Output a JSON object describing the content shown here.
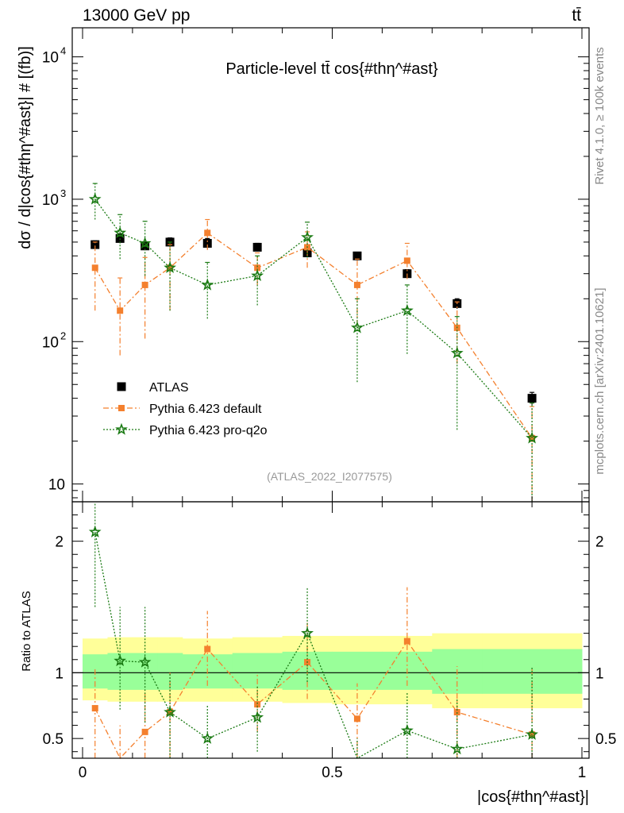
{
  "header": {
    "energy_label": "13000 GeV pp",
    "process_label": "tt̄"
  },
  "side": {
    "rivet_label": "Rivet 4.1.0, ≥ 100k events",
    "source_label": "mcplots.cern.ch [arXiv:2401.10621]"
  },
  "chart_data": {
    "type": "scatter",
    "title": "Particle-level tt̄ cos{#thη^#ast}",
    "analysis_id": "(ATLAS_2022_I2077575)",
    "xlabel": "|cos{#thη^#ast}|",
    "ylabel": "dσ / d|cos{#thη^#ast}| # [(fb)]",
    "ratio_ylabel": "Ratio to ATLAS",
    "xlim": [
      0,
      1
    ],
    "ylim": [
      7.5,
      16000
    ],
    "yscale": "log",
    "ratio_ylim": [
      0.35,
      2.3
    ],
    "x_ticks": [
      {
        "value": 0,
        "label": "0"
      },
      {
        "value": 0.5,
        "label": "0.5"
      },
      {
        "value": 1,
        "label": "1"
      }
    ],
    "y_ticks": [
      {
        "value": 10,
        "label": "10"
      },
      {
        "value": 100,
        "label": "10",
        "exp": "2"
      },
      {
        "value": 1000,
        "label": "10",
        "exp": "3"
      },
      {
        "value": 10000,
        "label": "10",
        "exp": "4"
      }
    ],
    "ratio_ticks": [
      {
        "value": 0.5,
        "label": "0.5"
      },
      {
        "value": 1,
        "label": "1"
      },
      {
        "value": 2,
        "label": "2"
      }
    ],
    "bin_edges": [
      0,
      0.05,
      0.1,
      0.15,
      0.2,
      0.3,
      0.4,
      0.5,
      0.6,
      0.7,
      0.8,
      1.0
    ],
    "series": [
      {
        "name": "ATLAS",
        "color": "#000000",
        "marker": "square",
        "x": [
          0.025,
          0.075,
          0.125,
          0.175,
          0.25,
          0.35,
          0.45,
          0.55,
          0.65,
          0.75,
          0.9
        ],
        "y": [
          480,
          530,
          470,
          500,
          490,
          460,
          420,
          400,
          300,
          185,
          40
        ],
        "yerr": [
          30,
          40,
          30,
          35,
          40,
          30,
          30,
          25,
          20,
          15,
          4
        ]
      },
      {
        "name": "Pythia 6.423 default",
        "color": "#f4802e",
        "marker": "square",
        "line": "dashdot",
        "x": [
          0.025,
          0.075,
          0.125,
          0.175,
          0.25,
          0.35,
          0.45,
          0.55,
          0.65,
          0.75,
          0.9
        ],
        "y": [
          330,
          165,
          250,
          330,
          580,
          330,
          460,
          250,
          370,
          125,
          21
        ],
        "ylo": [
          165,
          80,
          105,
          165,
          440,
          250,
          330,
          130,
          275,
          70,
          7
        ],
        "yhi": [
          500,
          280,
          390,
          480,
          720,
          420,
          590,
          380,
          490,
          190,
          35
        ]
      },
      {
        "name": "Pythia 6.423 pro-q2o",
        "color": "#1a7a13",
        "marker": "star",
        "line": "dotted",
        "x": [
          0.025,
          0.075,
          0.125,
          0.175,
          0.25,
          0.35,
          0.45,
          0.55,
          0.65,
          0.75,
          0.9
        ],
        "y": [
          1000,
          580,
          490,
          330,
          250,
          290,
          540,
          125,
          165,
          83,
          21
        ],
        "ylo": [
          720,
          380,
          290,
          165,
          145,
          180,
          390,
          52,
          82,
          24,
          5
        ],
        "yhi": [
          1290,
          780,
          700,
          500,
          360,
          400,
          690,
          200,
          250,
          150,
          37
        ]
      }
    ],
    "ratio_band": {
      "inner": [
        [
          0.88,
          1.14
        ],
        [
          0.87,
          1.15
        ],
        [
          0.87,
          1.15
        ],
        [
          0.87,
          1.15
        ],
        [
          0.88,
          1.14
        ],
        [
          0.88,
          1.15
        ],
        [
          0.87,
          1.16
        ],
        [
          0.87,
          1.16
        ],
        [
          0.87,
          1.16
        ],
        [
          0.84,
          1.18
        ],
        [
          0.84,
          1.18
        ]
      ],
      "outer": [
        [
          0.79,
          1.26
        ],
        [
          0.78,
          1.27
        ],
        [
          0.78,
          1.27
        ],
        [
          0.78,
          1.27
        ],
        [
          0.78,
          1.26
        ],
        [
          0.78,
          1.27
        ],
        [
          0.77,
          1.28
        ],
        [
          0.76,
          1.28
        ],
        [
          0.76,
          1.28
        ],
        [
          0.73,
          1.3
        ],
        [
          0.73,
          1.3
        ]
      ]
    },
    "ratios": [
      {
        "name": "Pythia 6.423 default",
        "color": "#f4802e",
        "marker": "square",
        "line": "dashdot",
        "x": [
          0.025,
          0.075,
          0.125,
          0.175,
          0.25,
          0.35,
          0.45,
          0.55,
          0.65,
          0.75,
          0.9
        ],
        "y": [
          0.73,
          0.33,
          0.55,
          0.7,
          1.18,
          0.76,
          1.08,
          0.65,
          1.24,
          0.7,
          0.53
        ],
        "ylo": [
          0.2,
          0.2,
          0.2,
          0.2,
          0.9,
          0.55,
          0.8,
          0.2,
          0.9,
          0.2,
          0.2
        ],
        "yhi": [
          1.04,
          0.6,
          0.85,
          1.0,
          1.47,
          1.0,
          1.38,
          0.92,
          1.65,
          1.05,
          1.04
        ]
      },
      {
        "name": "Pythia 6.423 pro-q2o",
        "color": "#1a7a13",
        "marker": "star",
        "line": "dotted",
        "x": [
          0.025,
          0.075,
          0.125,
          0.175,
          0.25,
          0.35,
          0.45,
          0.55,
          0.65,
          0.75,
          0.9
        ],
        "y": [
          2.07,
          1.09,
          1.08,
          0.7,
          0.5,
          0.66,
          1.3,
          0.31,
          0.56,
          0.42,
          0.53
        ],
        "ylo": [
          1.5,
          0.72,
          0.62,
          0.35,
          0.28,
          0.4,
          0.93,
          0.2,
          0.28,
          0.2,
          0.2
        ],
        "yhi": [
          2.6,
          1.5,
          1.5,
          1.0,
          0.75,
          0.9,
          1.65,
          0.5,
          0.85,
          0.8,
          1.04
        ]
      }
    ]
  }
}
